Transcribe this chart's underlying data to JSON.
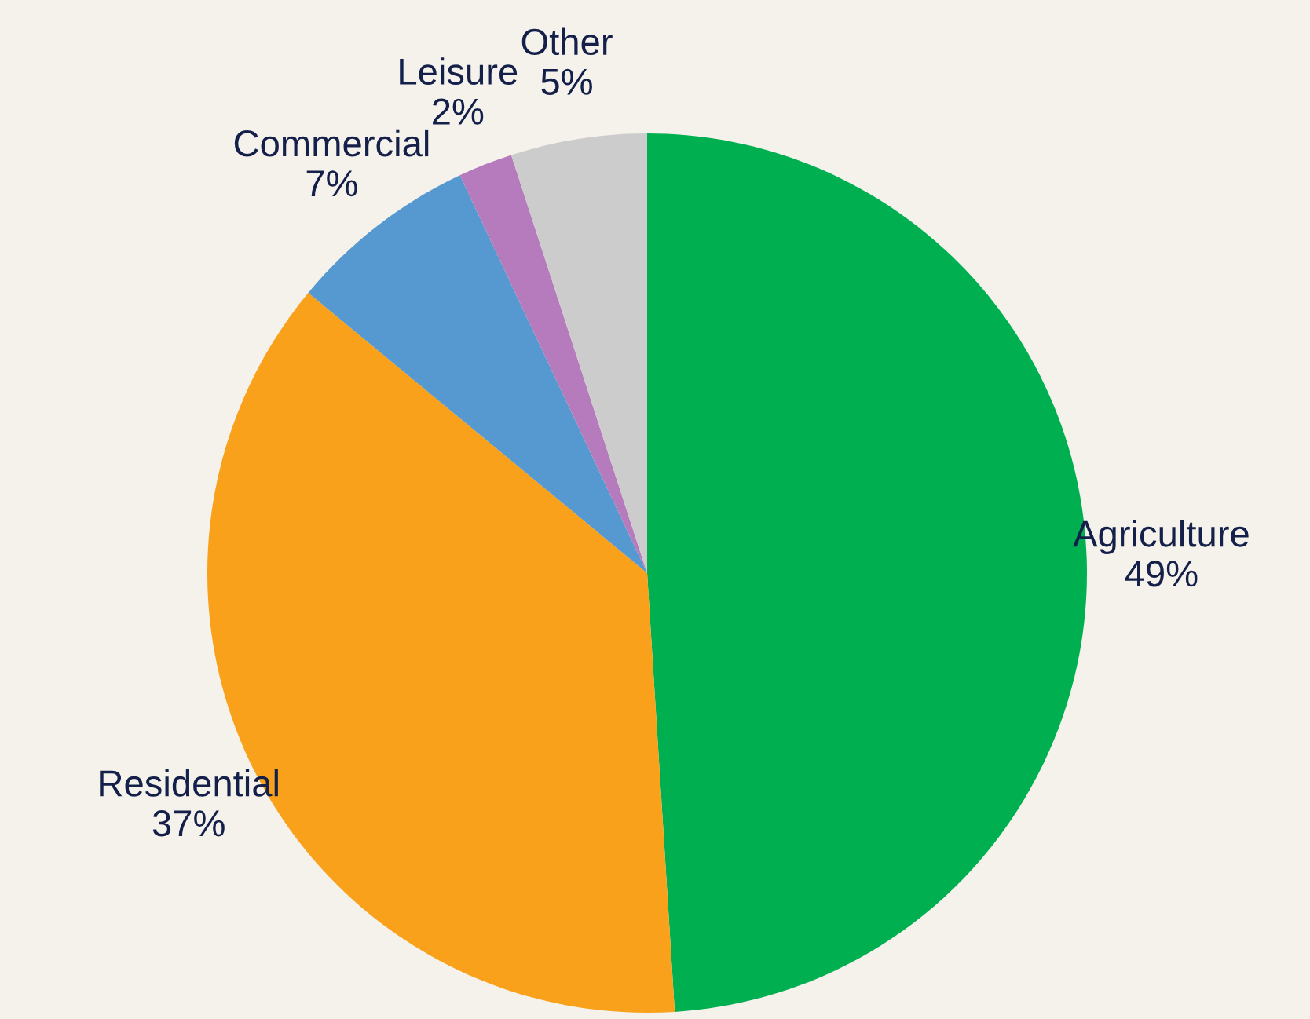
{
  "chart_data": {
    "type": "pie",
    "categories": [
      "Agriculture",
      "Residential",
      "Commercial",
      "Leisure",
      "Other"
    ],
    "values": [
      49,
      37,
      7,
      2,
      5
    ],
    "colors": [
      "#00b050",
      "#f9a11b",
      "#5599d0",
      "#b57bbd",
      "#cccccc"
    ],
    "value_labels": [
      "49%",
      "37%",
      "7%",
      "2%",
      "5%"
    ]
  }
}
